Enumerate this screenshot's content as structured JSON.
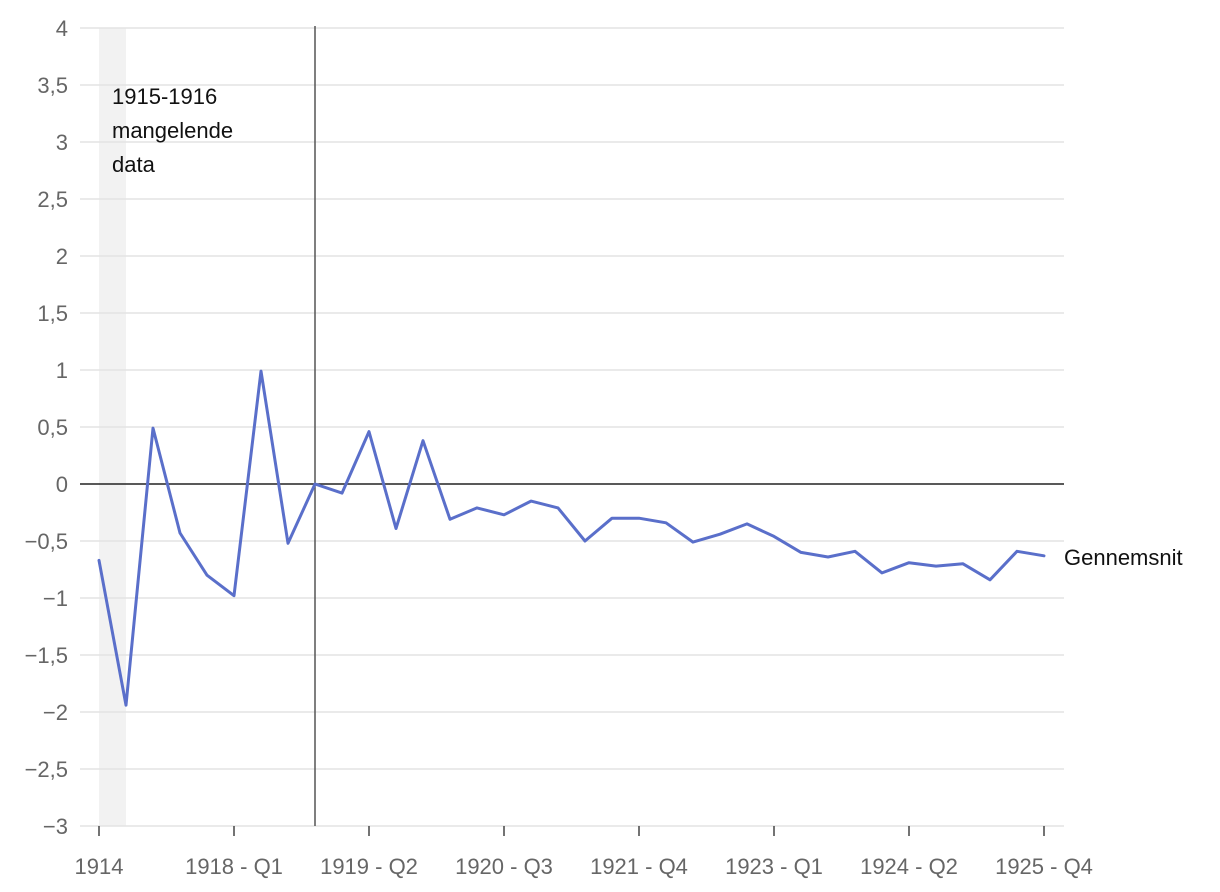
{
  "chart_data": {
    "type": "line",
    "title": "",
    "xlabel": "",
    "ylabel": "",
    "ylim": [
      -3,
      4
    ],
    "y_ticks": [
      "4",
      "3,5",
      "3",
      "2,5",
      "2",
      "1,5",
      "1",
      "0,5",
      "0",
      "−0,5",
      "−1",
      "−1,5",
      "−2",
      "−2,5",
      "−3"
    ],
    "y_tick_values": [
      4,
      3.5,
      3,
      2.5,
      2,
      1.5,
      1,
      0.5,
      0,
      -0.5,
      -1,
      -1.5,
      -2,
      -2.5,
      -3
    ],
    "x_tick_labels": [
      "1914",
      "1918 - Q1",
      "1919 - Q2",
      "1920 - Q3",
      "1921 - Q4",
      "1923 - Q1",
      "1924 - Q2",
      "1925 - Q4"
    ],
    "x_tick_indices": [
      0,
      5,
      10,
      15,
      20,
      25,
      30,
      35
    ],
    "gridlines": true,
    "zero_line": true,
    "shaded_region": {
      "x_from": 0,
      "x_to": 1,
      "color": "#f2f2f2",
      "label_lines": [
        "1915-1916",
        "mangelende",
        "data"
      ]
    },
    "vertical_marker": {
      "x": 8,
      "color": "#555555"
    },
    "series": [
      {
        "name": "Gennemsnit",
        "color": "#5a6fca",
        "values": [
          -0.67,
          -1.94,
          0.49,
          -0.43,
          -0.8,
          -0.98,
          0.99,
          -0.52,
          0.0,
          -0.08,
          0.46,
          -0.39,
          0.38,
          -0.31,
          -0.21,
          -0.27,
          -0.15,
          -0.21,
          -0.5,
          -0.3,
          -0.3,
          -0.34,
          -0.51,
          -0.44,
          -0.35,
          -0.46,
          -0.6,
          -0.64,
          -0.59,
          -0.78,
          -0.69,
          -0.72,
          -0.7,
          -0.84,
          -0.59,
          -0.63
        ]
      }
    ]
  }
}
